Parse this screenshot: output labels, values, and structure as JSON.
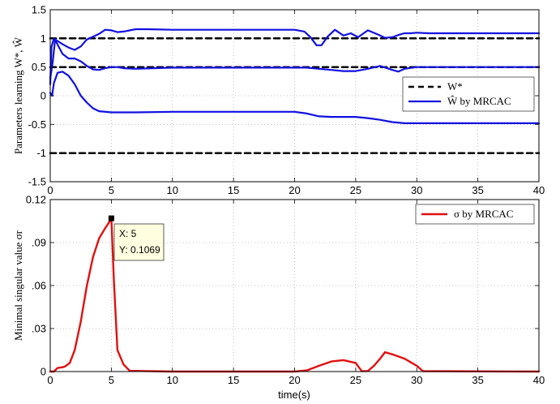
{
  "chart_data": [
    {
      "type": "line",
      "ylabel": "Parameters learning W*, Ŵ",
      "xlim": [
        0,
        40
      ],
      "ylim": [
        -1.5,
        1.5
      ],
      "x_ticks": [
        "0",
        "5",
        "10",
        "15",
        "20",
        "25",
        "30",
        "35",
        "40"
      ],
      "y_ticks": [
        "1.5",
        "1",
        "0.5",
        "0",
        "-0.5",
        "-1",
        "-1.5"
      ],
      "grid": true,
      "legend": {
        "position": "right",
        "entries": [
          {
            "label": "W*",
            "style": "dashed",
            "color": "#000000"
          },
          {
            "label": "Ŵ by MRCAC",
            "style": "solid",
            "color": "#1010e0"
          }
        ]
      },
      "series": [
        {
          "name": "W*",
          "color": "#000000",
          "dashed": true,
          "x": [
            0,
            40
          ],
          "y": [
            1,
            1
          ]
        },
        {
          "name": "W*",
          "color": "#000000",
          "dashed": true,
          "x": [
            0,
            40
          ],
          "y": [
            0.5,
            0.5
          ]
        },
        {
          "name": "W*",
          "color": "#000000",
          "dashed": true,
          "x": [
            0,
            40
          ],
          "y": [
            -1,
            -1
          ]
        },
        {
          "name": "Ŵ by MRCAC",
          "color": "#1010e0",
          "x": [
            0,
            0.1,
            0.3,
            0.5,
            1.0,
            1.5,
            2.0,
            2.5,
            3.0,
            3.5,
            4.0,
            4.5,
            5.0,
            5.5,
            6.0,
            7.0,
            8.0,
            10.0,
            15.0,
            20.0,
            20.8,
            21.3,
            21.8,
            22.2,
            22.7,
            23.3,
            24.0,
            24.6,
            25.2,
            26.0,
            26.8,
            27.4,
            28.0,
            28.5,
            29.0,
            29.5,
            30.0,
            31.0,
            40.0
          ],
          "y": [
            0.2,
            0.85,
            1.0,
            0.97,
            0.9,
            0.84,
            0.8,
            0.86,
            0.98,
            1.03,
            1.08,
            1.15,
            1.14,
            1.11,
            1.12,
            1.16,
            1.16,
            1.15,
            1.15,
            1.15,
            1.12,
            1.02,
            0.88,
            0.88,
            1.03,
            1.15,
            1.05,
            1.09,
            1.02,
            1.14,
            1.07,
            1.01,
            1.02,
            1.06,
            1.09,
            1.09,
            1.1,
            1.09,
            1.09
          ]
        },
        {
          "name": "Ŵ by MRCAC",
          "color": "#1010e0",
          "x": [
            0,
            0.2,
            0.4,
            0.7,
            1.0,
            1.5,
            2.0,
            2.5,
            3.0,
            3.5,
            4.0,
            4.5,
            5.0,
            5.5,
            6.0,
            7.0,
            10.0,
            15.0,
            20.0,
            21.0,
            22.0,
            23.0,
            24.0,
            25.0,
            26.0,
            27.0,
            28.0,
            28.5,
            29.0,
            30.0,
            40.0
          ],
          "y": [
            0.3,
            0.58,
            0.98,
            0.85,
            0.73,
            0.65,
            0.65,
            0.6,
            0.52,
            0.46,
            0.45,
            0.48,
            0.5,
            0.5,
            0.48,
            0.47,
            0.49,
            0.49,
            0.49,
            0.49,
            0.47,
            0.45,
            0.43,
            0.43,
            0.47,
            0.52,
            0.45,
            0.42,
            0.47,
            0.5,
            0.5
          ]
        },
        {
          "name": "Ŵ by MRCAC",
          "color": "#1010e0",
          "x": [
            0,
            0.15,
            0.3,
            0.6,
            1.0,
            1.5,
            2.0,
            2.5,
            3.0,
            3.5,
            4.0,
            5.0,
            6.0,
            7.0,
            10.0,
            15.0,
            20.0,
            21.0,
            22.0,
            23.0,
            25.0,
            26.0,
            27.0,
            28.0,
            29.0,
            30.0,
            40.0
          ],
          "y": [
            0.05,
            0.0,
            0.22,
            0.4,
            0.42,
            0.35,
            0.2,
            0.0,
            -0.12,
            -0.22,
            -0.27,
            -0.29,
            -0.29,
            -0.29,
            -0.28,
            -0.28,
            -0.28,
            -0.31,
            -0.36,
            -0.37,
            -0.37,
            -0.39,
            -0.42,
            -0.46,
            -0.48,
            -0.48,
            -0.48
          ]
        }
      ]
    },
    {
      "type": "line",
      "ylabel": "Minimal singular value σr",
      "xlabel": "time(s)",
      "xlim": [
        0,
        40
      ],
      "ylim": [
        0,
        0.12
      ],
      "x_ticks": [
        "0",
        "5",
        "10",
        "15",
        "20",
        "25",
        "30",
        "35",
        "40"
      ],
      "y_ticks": [
        "0.12",
        ".09",
        ".06",
        ".03",
        "0"
      ],
      "y_tick_values": [
        0.12,
        0.09,
        0.06,
        0.03,
        0
      ],
      "grid": true,
      "legend": {
        "position": "top-right",
        "entries": [
          {
            "label": "σ by MRCAC",
            "style": "solid",
            "color": "#e01010"
          }
        ]
      },
      "datatip": {
        "x_text": "X: 5",
        "y_text": "Y: 0.1069",
        "x": 5,
        "y": 0.1069
      },
      "series": [
        {
          "name": "σ by MRCAC",
          "color": "#e01010",
          "x": [
            0,
            0.3,
            0.6,
            1.0,
            1.2,
            1.6,
            2.0,
            2.5,
            3.0,
            3.5,
            4.0,
            4.5,
            4.8,
            5.0,
            5.2,
            5.5,
            6.0,
            6.5,
            10.0,
            20.0,
            21.0,
            22.0,
            23.0,
            24.0,
            25.0,
            25.5,
            26.0,
            26.5,
            27.0,
            27.4,
            28.0,
            29.0,
            30.0,
            30.5,
            40.0
          ],
          "y": [
            0,
            0.0,
            0.0025,
            0.003,
            0.0035,
            0.006,
            0.015,
            0.035,
            0.06,
            0.08,
            0.093,
            0.1,
            0.104,
            0.1069,
            0.065,
            0.015,
            0.005,
            0.0005,
            0,
            0,
            0.0008,
            0.004,
            0.007,
            0.008,
            0.006,
            0.0002,
            0.0004,
            0.004,
            0.009,
            0.0135,
            0.012,
            0.009,
            0.004,
            0.0003,
            0
          ]
        }
      ]
    }
  ]
}
